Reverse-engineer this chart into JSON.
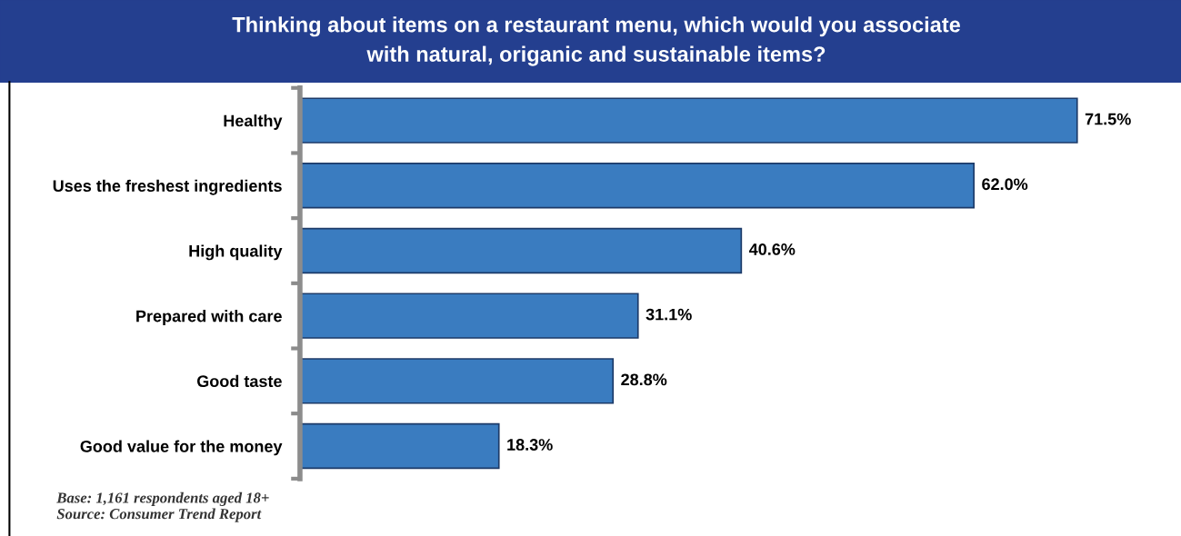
{
  "chart_data": {
    "type": "bar",
    "orientation": "horizontal",
    "title": "Thinking about items on a restaurant menu, which would you associate\nwith natural, origanic and sustainable items?",
    "categories": [
      "Healthy",
      "Uses the freshest ingredients",
      "High quality",
      "Prepared with care",
      "Good taste",
      "Good value for the money"
    ],
    "values": [
      71.5,
      62.0,
      40.6,
      31.1,
      28.8,
      18.3
    ],
    "value_labels": [
      "71.5%",
      "62.0%",
      "40.6%",
      "31.1%",
      "28.8%",
      "18.3%"
    ],
    "color": "#3a7cc0",
    "annotations": [
      "Base: 1,161 respondents aged 18+",
      "Source: Consumer Trend Report"
    ]
  }
}
